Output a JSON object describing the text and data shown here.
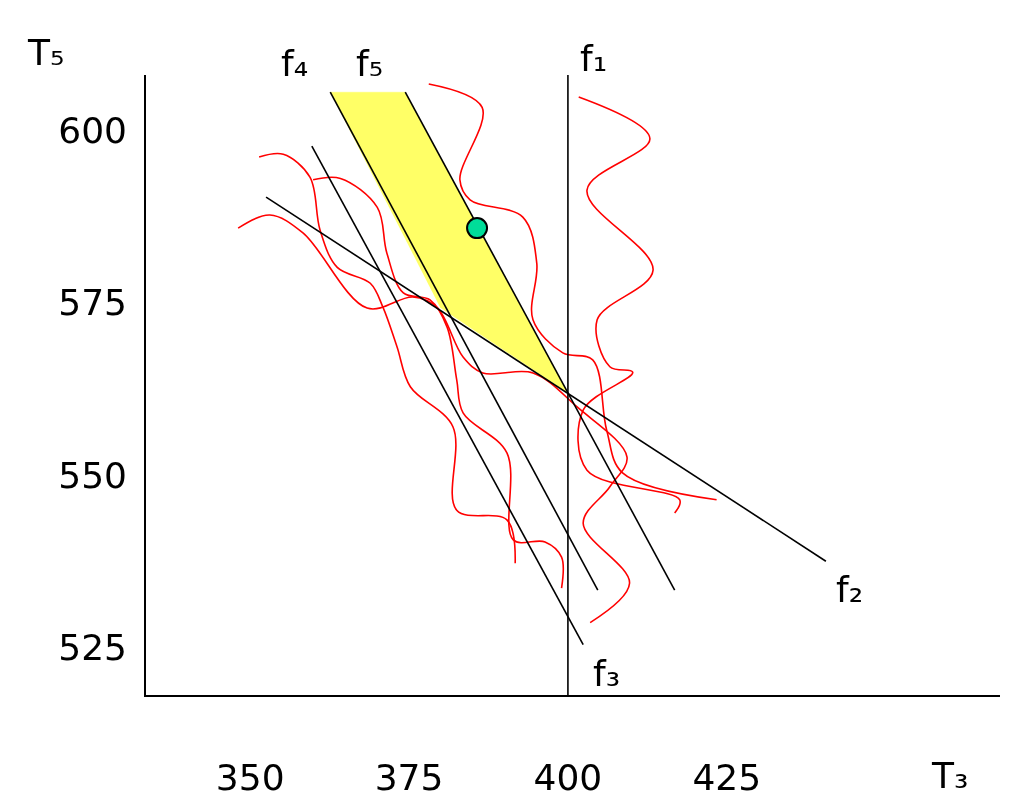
{
  "chart_data": {
    "type": "line",
    "xlabel": "T₃",
    "ylabel": "T₅",
    "xlim": [
      333.6,
      468
    ],
    "ylim": [
      518.1,
      608
    ],
    "xticks": [
      350,
      375,
      400,
      425
    ],
    "yticks": [
      525,
      550,
      575,
      600
    ],
    "ref_lines": [
      {
        "axis": "x",
        "value": 400,
        "label": "f₁",
        "color": "#000000"
      }
    ],
    "series": [
      {
        "type": "area",
        "color": "#ffff66",
        "x": [
          362.6,
          374.4,
          400,
          379.9
        ],
        "values": [
          605.5,
          605.5,
          561.9,
          574.3
        ]
      },
      {
        "color": "#ff0000",
        "x": [
          401.7,
          412.9,
          403.0,
          413.4,
          404.6,
          406.6,
          410.2,
          402.4,
          403.0,
          417.6,
          416.8
        ],
        "values": [
          604.8,
          598.8,
          591.3,
          579.7,
          572.5,
          565.7,
          564.9,
          559.4,
          550.7,
          546.4,
          544.5
        ]
      },
      {
        "color": "#ff0000",
        "x": [
          378.1,
          386.5,
          383.0,
          384.6,
          392.9,
          395.1,
          394.5,
          399.2,
          403.9,
          406.1,
          408.6,
          423.4
        ],
        "values": [
          606.7,
          603.3,
          592.8,
          589.9,
          587.4,
          580.7,
          572.5,
          567.7,
          566.7,
          556.5,
          550.3,
          546.4
        ]
      },
      {
        "color": "#ff0000",
        "x": [
          348.1,
          353.1,
          358.3,
          368.4,
          375.6,
          379.4,
          383.5,
          386.6,
          394.5,
          401.4,
          409.3,
          406.6,
          402.4,
          409.7,
          403.5
        ],
        "values": [
          585.8,
          587.7,
          585.1,
          574.2,
          575.8,
          574.3,
          567.1,
          564.8,
          564.8,
          559.9,
          552.6,
          548.3,
          543.0,
          534.3,
          528.6
        ]
      },
      {
        "color": "#ff0000",
        "x": [
          351.4,
          355.2,
          359.4,
          361.0,
          363.7,
          368.9,
          370.9,
          373.1,
          375.2,
          381.9,
          382.5,
          390.4,
          391.7
        ],
        "values": [
          596.1,
          596.5,
          593.2,
          585.5,
          580.1,
          577.8,
          574.3,
          568.6,
          562.8,
          557.0,
          544.9,
          543.5,
          537.2
        ]
      },
      {
        "color": "#ff0000",
        "x": [
          359.9,
          364.2,
          370.0,
          371.5,
          374.1,
          378.3,
          381.0,
          382.5,
          383.5,
          390.4,
          391.4,
          396.4,
          399.0,
          399.0
        ],
        "values": [
          592.8,
          593.0,
          588.8,
          582.2,
          576.4,
          575.4,
          571.4,
          563.8,
          559.0,
          553.2,
          540.6,
          540.3,
          538.1,
          533.6
        ]
      },
      {
        "type": "line",
        "name": "f₂",
        "color": "#000000",
        "x": [
          440.6,
          352.5
        ],
        "values": [
          537.5,
          590.3
        ]
      },
      {
        "type": "line",
        "name": "f₃",
        "color": "#000000",
        "x": [
          402.4,
          359.7
        ],
        "values": [
          525.4,
          597.7
        ]
      },
      {
        "type": "line",
        "name": "f₄",
        "color": "#000000",
        "x": [
          362.6,
          404.7
        ],
        "values": [
          605.5,
          533.3
        ]
      },
      {
        "type": "line",
        "name": "f₅",
        "color": "#000000",
        "x": [
          374.4,
          416.8
        ],
        "values": [
          605.5,
          533.3
        ]
      },
      {
        "type": "scatter",
        "marker": "circle",
        "color": "#00dd99",
        "x": [
          385.7
        ],
        "values": [
          585.8
        ]
      }
    ]
  }
}
